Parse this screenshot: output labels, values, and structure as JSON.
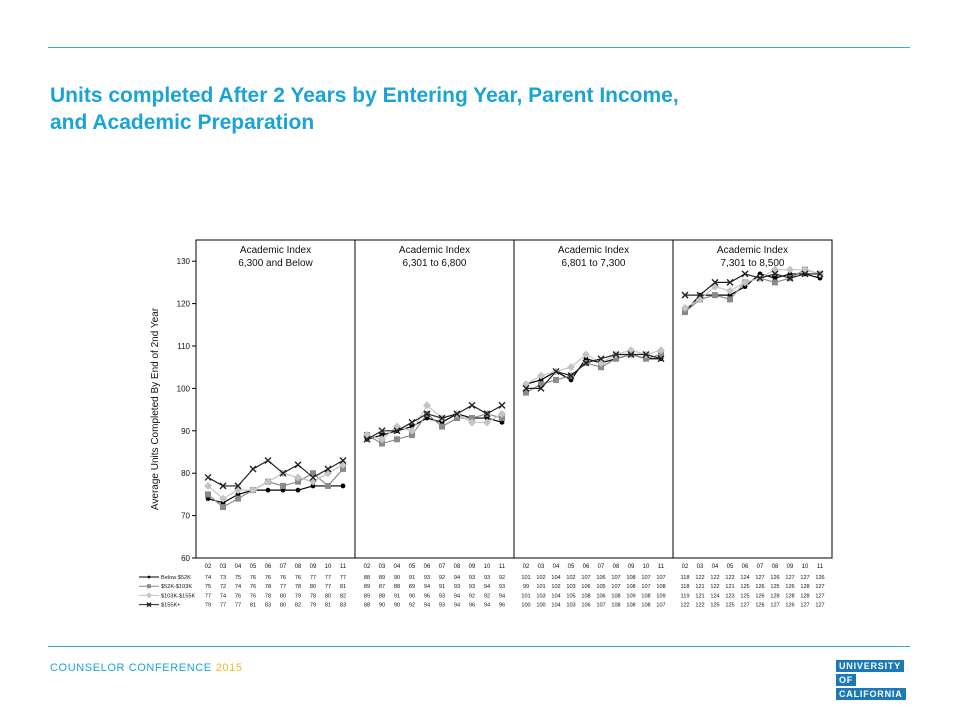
{
  "slide": {
    "title_lines": [
      "Units completed After 2 Years by Entering Year, Parent Income,",
      "and Academic Preparation"
    ],
    "footer_text": "COUNSELOR CONFERENCE",
    "footer_year": "2015",
    "logo_lines": [
      "UNIVERSITY",
      "OF",
      "CALIFORNIA"
    ],
    "colors": {
      "accent": "#1aa3d9",
      "year": "#f2b81c",
      "logo": "#1b79b8"
    }
  },
  "chart_data": {
    "type": "line",
    "ylabel": "Average Units Completed By End of 2nd Year",
    "ylim": [
      60,
      135
    ],
    "yticks": [
      60,
      70,
      80,
      90,
      100,
      110,
      120,
      130
    ],
    "x": [
      "02",
      "03",
      "04",
      "05",
      "06",
      "07",
      "08",
      "09",
      "10",
      "11"
    ],
    "series_legend": [
      {
        "name": "Below $52K",
        "marker": "circle",
        "color": "#000000"
      },
      {
        "name": "$52K-$103K",
        "marker": "square",
        "color": "#8a8a8a"
      },
      {
        "name": "$103K-$155K",
        "marker": "diamond",
        "color": "#c4c4c4"
      },
      {
        "name": "$155K+",
        "marker": "x",
        "color": "#222222"
      }
    ],
    "panels": [
      {
        "title_lines": [
          "Academic Index",
          "6,300 and Below"
        ],
        "series": [
          {
            "name": "Below $52K",
            "values": [
              74,
              73,
              75,
              76,
              76,
              76,
              76,
              77,
              77,
              77
            ]
          },
          {
            "name": "$52K-$103K",
            "values": [
              75,
              72,
              74,
              76,
              78,
              77,
              78,
              80,
              77,
              81
            ]
          },
          {
            "name": "$103K-$155K",
            "values": [
              77,
              74,
              76,
              76,
              78,
              80,
              79,
              78,
              80,
              82
            ]
          },
          {
            "name": "$155K+",
            "values": [
              79,
              77,
              77,
              81,
              83,
              80,
              82,
              79,
              81,
              83
            ]
          }
        ]
      },
      {
        "title_lines": [
          "Academic Index",
          "6,301 to 6,800"
        ],
        "series": [
          {
            "name": "Below $52K",
            "values": [
              88,
              89,
              90,
              91,
              93,
              92,
              94,
              93,
              93,
              92
            ]
          },
          {
            "name": "$52K-$103K",
            "values": [
              89,
              87,
              88,
              89,
              94,
              91,
              93,
              93,
              94,
              93
            ]
          },
          {
            "name": "$103K-$155K",
            "values": [
              89,
              88,
              91,
              90,
              96,
              93,
              94,
              92,
              92,
              94
            ]
          },
          {
            "name": "$155K+",
            "values": [
              88,
              90,
              90,
              92,
              94,
              93,
              94,
              96,
              94,
              96
            ]
          }
        ]
      },
      {
        "title_lines": [
          "Academic Index",
          "6,801 to 7,300"
        ],
        "series": [
          {
            "name": "Below $52K",
            "values": [
              101,
              102,
              104,
              102,
              107,
              106,
              107,
              108,
              107,
              107
            ]
          },
          {
            "name": "$52K-$103K",
            "values": [
              99,
              101,
              102,
              103,
              106,
              105,
              107,
              108,
              107,
              108
            ]
          },
          {
            "name": "$103K-$155K",
            "values": [
              101,
              103,
              104,
              105,
              108,
              106,
              108,
              109,
              108,
              109
            ]
          },
          {
            "name": "$155K+",
            "values": [
              100,
              100,
              104,
              103,
              106,
              107,
              108,
              108,
              108,
              107
            ]
          }
        ]
      },
      {
        "title_lines": [
          "Academic Index",
          "7,301 to 8,500"
        ],
        "series": [
          {
            "name": "Below $52K",
            "values": [
              118,
              122,
              122,
              122,
              124,
              127,
              126,
              127,
              127,
              126
            ]
          },
          {
            "name": "$52K-$103K",
            "values": [
              118,
              121,
              122,
              121,
              125,
              126,
              125,
              126,
              128,
              127
            ]
          },
          {
            "name": "$103K-$155K",
            "values": [
              119,
              121,
              124,
              123,
              125,
              126,
              128,
              128,
              128,
              127
            ]
          },
          {
            "name": "$155K+",
            "values": [
              122,
              122,
              125,
              125,
              127,
              126,
              127,
              126,
              127,
              127
            ]
          }
        ]
      }
    ]
  }
}
